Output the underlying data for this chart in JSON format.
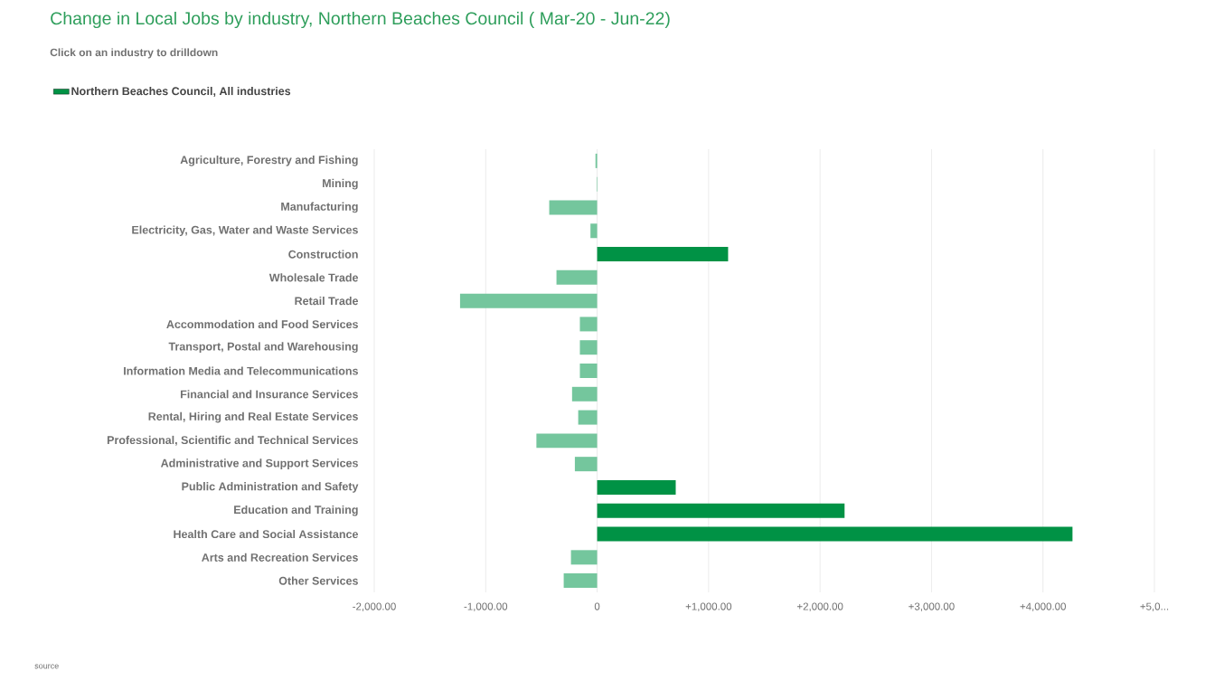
{
  "chart_data": {
    "type": "bar",
    "orientation": "horizontal",
    "title": "Change in Local Jobs by industry, Northern Beaches Council ( Mar-20 - Jun-22)",
    "subtitle": "Click on an industry to drilldown",
    "categories": [
      "Agriculture, Forestry and Fishing",
      "Mining",
      "Manufacturing",
      "Electricity, Gas, Water and Waste Services",
      "Construction",
      "Wholesale Trade",
      "Retail Trade",
      "Accommodation and Food Services",
      "Transport, Postal and Warehousing",
      "Information Media and Telecommunications",
      "Financial and Insurance Services",
      "Rental, Hiring and Real Estate Services",
      "Professional, Scientific and Technical Services",
      "Administrative and Support Services",
      "Public Administration and Safety",
      "Education and Training",
      "Health Care and Social Assistance",
      "Arts and Recreation Services",
      "Other Services"
    ],
    "series": [
      {
        "name": "Northern Beaches Council, All industries",
        "color": "#009245",
        "values": [
          -15,
          -5,
          -430,
          -60,
          1175,
          -365,
          -1230,
          -155,
          -155,
          -155,
          -225,
          -170,
          -545,
          -200,
          705,
          2220,
          4265,
          -235,
          -300
        ],
        "colors": [
          "#74c69d",
          "#74c69d",
          "#74c69d",
          "#74c69d",
          "#009245",
          "#74c69d",
          "#74c69d",
          "#74c69d",
          "#74c69d",
          "#74c69d",
          "#74c69d",
          "#74c69d",
          "#74c69d",
          "#74c69d",
          "#009245",
          "#009245",
          "#009245",
          "#74c69d",
          "#74c69d"
        ]
      }
    ],
    "xlim": [
      -2000,
      5000
    ],
    "xticks": [
      {
        "value": -2000,
        "label": "-2,000.00"
      },
      {
        "value": -1000,
        "label": "-1,000.00"
      },
      0,
      {
        "value": 1000,
        "label": "+1,000.00"
      },
      {
        "value": 2000,
        "label": "+2,000.00"
      },
      {
        "value": 3000,
        "label": "+3,000.00"
      },
      {
        "value": 4000,
        "label": "+4,000.00"
      },
      {
        "value": 5000,
        "label": "+5,0..."
      }
    ],
    "grid": "x",
    "legend": "top left",
    "annotations": [
      "source"
    ]
  }
}
